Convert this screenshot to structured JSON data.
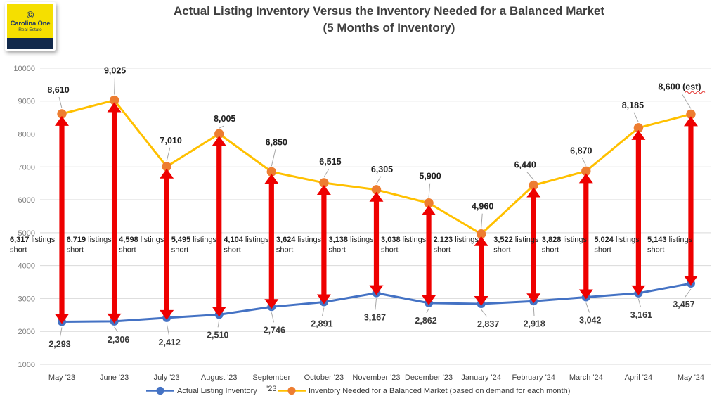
{
  "logo": {
    "copyright_symbol": "©",
    "name": "Carolina One",
    "subtitle": "Real Estate"
  },
  "title": {
    "line1": "Actual Listing Inventory Versus the Inventory Needed for a Balanced Market",
    "line2": "(5 Months of Inventory)"
  },
  "legend": {
    "actual": "Actual Listing Inventory",
    "needed": "Inventory Needed for a Balanced Market (based on demand for each month)"
  },
  "colors": {
    "actual": "#4472C4",
    "needed_line": "#FFC000",
    "needed_marker": "#ED7D31",
    "arrow": "#EE0000",
    "grid": "#D9D9D9",
    "ytick_text": "#7F7F7F",
    "xtick_text": "#3F3F3F",
    "actual_label_text": "#3B3B3B",
    "needed_label_text": "#1F1F1F",
    "shortfall_text": "#1F1F1F",
    "leader_line": "#A6A6A6",
    "squiggle": "#E53935"
  },
  "chart_data": {
    "type": "line",
    "title": "Actual Listing Inventory Versus the Inventory Needed for a Balanced Market (5 Months of Inventory)",
    "categories": [
      "May '23",
      "June '23",
      "July '23",
      "August '23",
      "September '23",
      "October '23",
      "November '23",
      "December '23",
      "January '24",
      "February '24",
      "March '24",
      "April '24",
      "May '24"
    ],
    "series": [
      {
        "name": "Actual Listing Inventory",
        "values": [
          2293,
          2306,
          2412,
          2510,
          2746,
          2891,
          3167,
          2862,
          2837,
          2918,
          3042,
          3161,
          3457
        ],
        "labels": [
          "2,293",
          "2,306",
          "2,412",
          "2,510",
          "2,746",
          "2,891",
          "3,167",
          "2,862",
          "2,837",
          "2,918",
          "3,042",
          "3,161",
          "3,457"
        ]
      },
      {
        "name": "Inventory Needed for a Balanced Market (based on demand for each month)",
        "values": [
          8610,
          9025,
          7010,
          8005,
          6850,
          6515,
          6305,
          5900,
          4960,
          6440,
          6870,
          8185,
          8600
        ],
        "labels": [
          "8,610",
          "9,025",
          "7,010",
          "8,005",
          "6,850",
          "6,515",
          "6,305",
          "5,900",
          "4,960",
          "6,440",
          "6,870",
          "8,185",
          "8,600 (est)"
        ]
      }
    ],
    "shortfalls": {
      "values": [
        6317,
        6719,
        4598,
        5495,
        4104,
        3624,
        3138,
        3038,
        2123,
        3522,
        3828,
        5024,
        5143
      ],
      "amount_labels": [
        "6,317",
        "6,719",
        "4,598",
        "5,495",
        "4,104",
        "3,624",
        "3,138",
        "3,038",
        "2,123",
        "3,522",
        "3,828",
        "5,024",
        "5,143"
      ],
      "word_line1": "listings",
      "word_line2": "short"
    },
    "yticks": [
      1000,
      2000,
      3000,
      4000,
      5000,
      6000,
      7000,
      8000,
      9000,
      10000
    ],
    "ylim": [
      1000,
      10000
    ],
    "xlabel": "",
    "ylabel": "",
    "grid": true,
    "legend_position": "bottom"
  }
}
